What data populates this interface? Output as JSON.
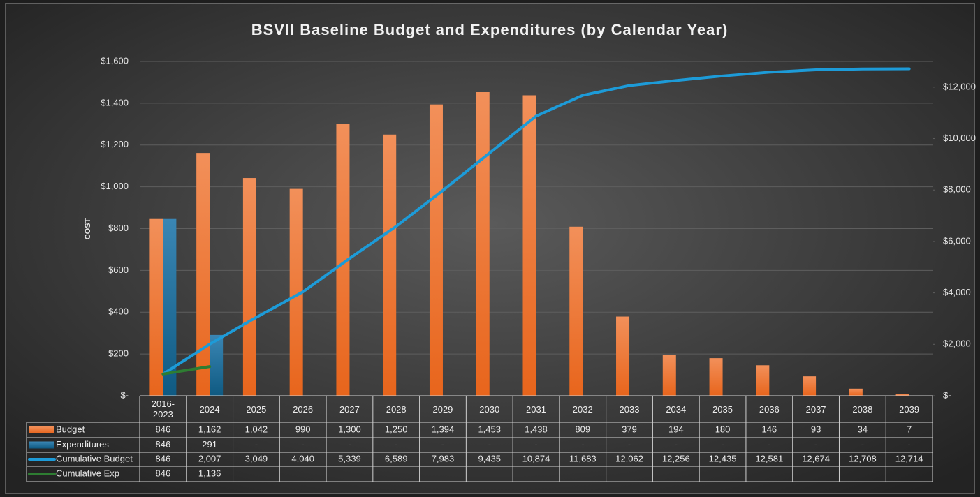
{
  "chart_data": {
    "type": "bar",
    "title": "BSVII Baseline Budget and Expenditures (by Calendar Year)",
    "y_label": "COST",
    "categories": [
      "2016-2023",
      "2024",
      "2025",
      "2026",
      "2027",
      "2028",
      "2029",
      "2030",
      "2031",
      "2032",
      "2033",
      "2034",
      "2035",
      "2036",
      "2037",
      "2038",
      "2039"
    ],
    "series": [
      {
        "name": "Budget",
        "type": "bar",
        "color": "#ed7d31",
        "values": [
          846,
          1162,
          1042,
          990,
          1300,
          1250,
          1394,
          1453,
          1438,
          809,
          379,
          194,
          180,
          146,
          93,
          34,
          7
        ],
        "value_labels": [
          "846",
          "1,162",
          "1,042",
          "990",
          "1,300",
          "1,250",
          "1,394",
          "1,453",
          "1,438",
          "809",
          "379",
          "194",
          "180",
          "146",
          "93",
          "34",
          "7"
        ]
      },
      {
        "name": "Expenditures",
        "type": "bar",
        "color": "#2a6f9c",
        "values": [
          846,
          291,
          0,
          0,
          0,
          0,
          0,
          0,
          0,
          0,
          0,
          0,
          0,
          0,
          0,
          0,
          0
        ],
        "value_labels": [
          "846",
          "291",
          "-",
          "-",
          "-",
          "-",
          "-",
          "-",
          "-",
          "-",
          "-",
          "-",
          "-",
          "-",
          "-",
          "-",
          "-"
        ]
      },
      {
        "name": "Cumulative Budget",
        "type": "line",
        "axis": "y2",
        "color": "#1d9bd8",
        "values": [
          846,
          2007,
          3049,
          4040,
          5339,
          6589,
          7983,
          9435,
          10874,
          11683,
          12062,
          12256,
          12435,
          12581,
          12674,
          12708,
          12714
        ],
        "value_labels": [
          "846",
          "2,007",
          "3,049",
          "4,040",
          "5,339",
          "6,589",
          "7,983",
          "9,435",
          "10,874",
          "11,683",
          "12,062",
          "12,256",
          "12,435",
          "12,581",
          "12,674",
          "12,708",
          "12,714"
        ]
      },
      {
        "name": "Cumulative Exp",
        "type": "line",
        "axis": "y2",
        "color": "#2e7d32",
        "values": [
          846,
          1136,
          null,
          null,
          null,
          null,
          null,
          null,
          null,
          null,
          null,
          null,
          null,
          null,
          null,
          null,
          null
        ],
        "value_labels": [
          "846",
          "1,136",
          null,
          null,
          null,
          null,
          null,
          null,
          null,
          null,
          null,
          null,
          null,
          null,
          null,
          null,
          null
        ]
      }
    ],
    "ylim": [
      0,
      1600
    ],
    "yticks": [
      {
        "value": 0,
        "label": "$-"
      },
      {
        "value": 200,
        "label": "$200"
      },
      {
        "value": 400,
        "label": "$400"
      },
      {
        "value": 600,
        "label": "$600"
      },
      {
        "value": 800,
        "label": "$800"
      },
      {
        "value": 1000,
        "label": "$1,000"
      },
      {
        "value": 1200,
        "label": "$1,200"
      },
      {
        "value": 1400,
        "label": "$1,400"
      },
      {
        "value": 1600,
        "label": "$1,600"
      }
    ],
    "y2lim": [
      0,
      13000
    ],
    "y2ticks": [
      {
        "value": 0,
        "label": "$-"
      },
      {
        "value": 2000,
        "label": "$2,000"
      },
      {
        "value": 4000,
        "label": "$4,000"
      },
      {
        "value": 6000,
        "label": "$6,000"
      },
      {
        "value": 8000,
        "label": "$8,000"
      },
      {
        "value": 10000,
        "label": "$10,000"
      },
      {
        "value": 12000,
        "label": "$12,000"
      }
    ],
    "grid": true
  }
}
